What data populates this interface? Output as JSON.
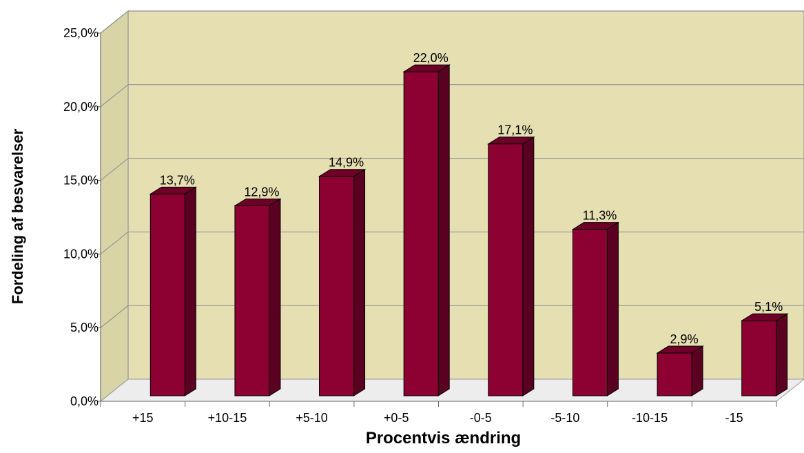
{
  "chart_data": {
    "type": "bar",
    "title": "",
    "xlabel": "Procentvis ændring",
    "ylabel": "Fordeling af besvarelser",
    "categories": [
      "+15",
      "+10-15",
      "+5-10",
      "+0-5",
      "-0-5",
      "-5-10",
      "-10-15",
      "-15"
    ],
    "values": [
      13.7,
      12.9,
      14.9,
      22.0,
      17.1,
      11.3,
      2.9,
      5.1
    ],
    "data_labels": [
      "13,7%",
      "12,9%",
      "14,9%",
      "22,0%",
      "17,1%",
      "11,3%",
      "2,9%",
      "5,1%"
    ],
    "ylim": [
      0,
      25
    ],
    "yticks": [
      "0,0%",
      "5,0%",
      "10,0%",
      "15,0%",
      "20,0%",
      "25,0%"
    ],
    "grid": true,
    "three_d": true,
    "colors": {
      "bar_front": "#8C0032",
      "bar_top": "#6E0028",
      "bar_side": "#5A0020",
      "back_wall": "#E5DFB2",
      "side_wall": "#D9D4A6",
      "floor": "#EDEDED"
    }
  }
}
